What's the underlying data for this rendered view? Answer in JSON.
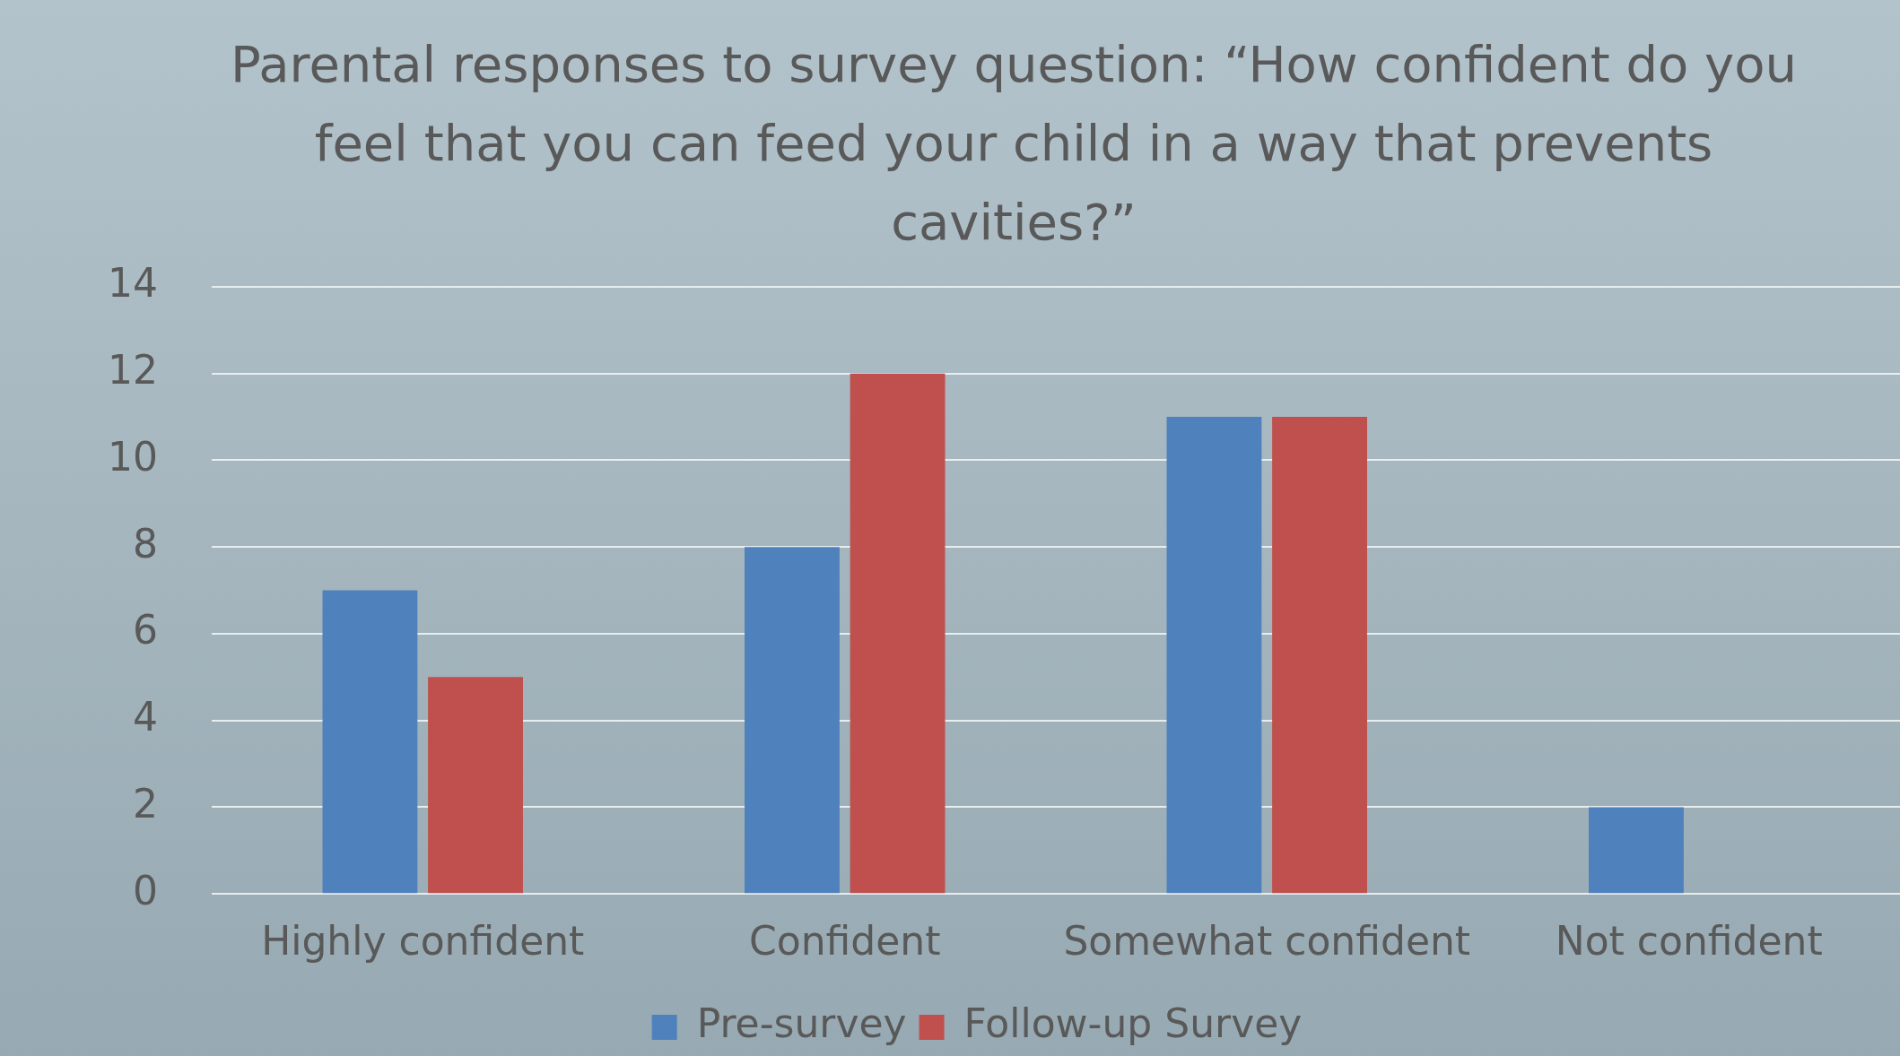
{
  "chart_data": {
    "type": "bar",
    "title": "Parental responses to survey question: “How confident do you feel that you can feed your child in a way that prevents cavities?”",
    "categories": [
      "Highly confident",
      "Confident",
      "Somewhat confident",
      "Not confident"
    ],
    "series": [
      {
        "name": "Pre-survey",
        "color": "#4f81bd",
        "values": [
          7,
          8,
          11,
          2
        ]
      },
      {
        "name": "Follow-up Survey",
        "color": "#c0504d",
        "values": [
          5,
          12,
          11,
          0
        ]
      }
    ],
    "ylim": [
      0,
      14
    ],
    "yticks": [
      0,
      2,
      4,
      6,
      8,
      10,
      12,
      14
    ],
    "grid": "y",
    "legend": "bottom"
  }
}
